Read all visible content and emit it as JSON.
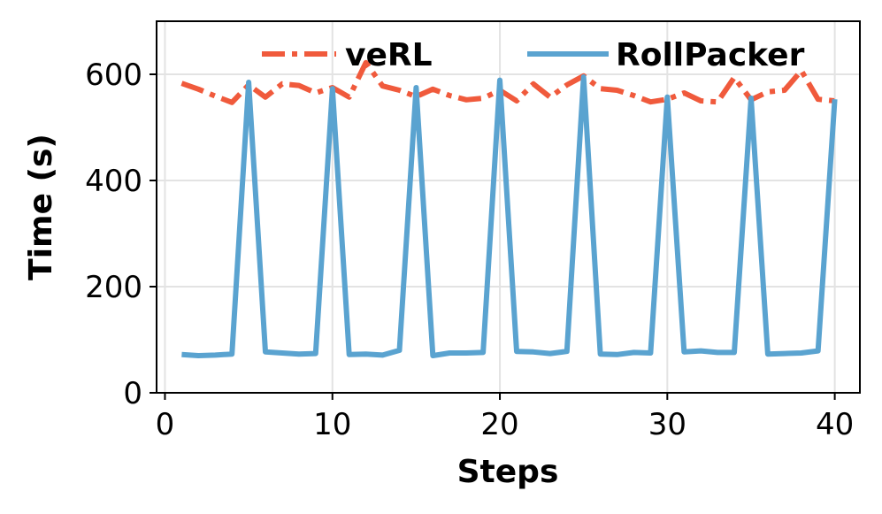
{
  "chart_data": {
    "type": "line",
    "xlabel": "Steps",
    "ylabel": "Time (s)",
    "xlim": [
      -0.5,
      41.5
    ],
    "ylim": [
      0,
      700
    ],
    "xticks": [
      0,
      10,
      20,
      30,
      40
    ],
    "yticks": [
      0,
      200,
      400,
      600
    ],
    "grid": true,
    "legend_position": "top",
    "x": [
      1,
      2,
      3,
      4,
      5,
      6,
      7,
      8,
      9,
      10,
      11,
      12,
      13,
      14,
      15,
      16,
      17,
      18,
      19,
      20,
      21,
      22,
      23,
      24,
      25,
      26,
      27,
      28,
      29,
      30,
      31,
      32,
      33,
      34,
      35,
      36,
      37,
      38,
      39,
      40
    ],
    "series": [
      {
        "name": "veRL",
        "color": "#f05a3c",
        "style": "dashdot",
        "values": [
          583,
          572,
          559,
          547,
          580,
          557,
          582,
          579,
          565,
          575,
          557,
          622,
          578,
          570,
          558,
          572,
          560,
          552,
          555,
          570,
          550,
          582,
          557,
          580,
          597,
          573,
          570,
          560,
          548,
          553,
          565,
          550,
          548,
          594,
          552,
          567,
          570,
          607,
          553,
          550
        ]
      },
      {
        "name": "RollPacker",
        "color": "#5aa3d0",
        "style": "solid",
        "values": [
          72,
          70,
          71,
          73,
          585,
          77,
          75,
          73,
          74,
          573,
          72,
          73,
          71,
          80,
          575,
          70,
          75,
          75,
          76,
          589,
          78,
          77,
          74,
          78,
          595,
          73,
          72,
          76,
          75,
          557,
          77,
          79,
          76,
          76,
          555,
          73,
          74,
          75,
          79,
          553
        ]
      }
    ]
  }
}
